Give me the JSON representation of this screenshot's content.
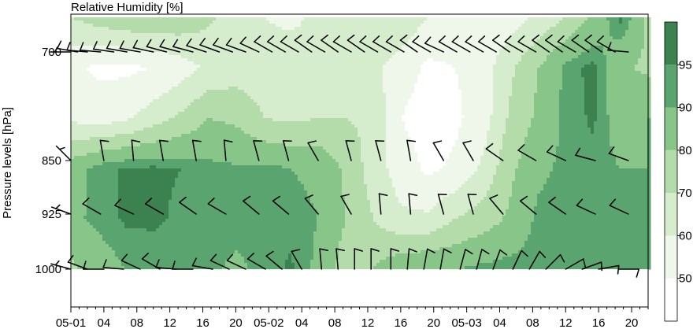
{
  "chart_data": {
    "type": "heatmap",
    "title": "Relative Humidity [%]",
    "ylabel": "Pressure levels [hPa]",
    "xlabel": "",
    "x_tick_labels": [
      "05-01",
      "04",
      "08",
      "12",
      "16",
      "20",
      "05-02",
      "04",
      "08",
      "12",
      "16",
      "20",
      "05-03",
      "04",
      "08",
      "12",
      "16",
      "20"
    ],
    "y_levels": [
      700,
      850,
      925,
      1000
    ],
    "y_tick_labels": [
      "700",
      "850",
      "925",
      "1000"
    ],
    "colorbar": {
      "tick_labels": [
        "50",
        "60",
        "70",
        "80",
        "90",
        "95"
      ],
      "levels": [
        40,
        50,
        60,
        70,
        80,
        90,
        95,
        100
      ],
      "colors": [
        "#ffffff",
        "#eef7ea",
        "#d5eccd",
        "#b3dcaa",
        "#88c588",
        "#5aa56f",
        "#3c8250"
      ]
    },
    "rh_grid": [
      [
        70,
        75,
        78,
        80,
        78,
        72,
        65,
        60,
        58,
        62,
        68,
        70,
        68,
        60,
        55,
        52,
        55,
        62,
        70,
        82,
        97,
        78
      ],
      [
        52,
        48,
        48,
        50,
        55,
        62,
        65,
        65,
        65,
        62,
        60,
        62,
        55,
        48,
        50,
        55,
        68,
        80,
        92,
        97,
        82,
        78
      ],
      [
        58,
        55,
        58,
        65,
        72,
        80,
        78,
        70,
        68,
        70,
        70,
        68,
        50,
        45,
        48,
        55,
        72,
        82,
        92,
        96,
        85,
        90
      ],
      [
        85,
        93,
        96,
        96,
        95,
        92,
        91,
        92,
        90,
        88,
        78,
        65,
        55,
        48,
        52,
        62,
        78,
        88,
        92,
        93,
        90,
        90
      ],
      [
        88,
        92,
        96,
        96,
        94,
        94,
        93,
        95,
        93,
        90,
        80,
        70,
        62,
        62,
        70,
        75,
        82,
        92,
        93,
        95,
        90,
        92
      ],
      [
        78,
        85,
        90,
        92,
        90,
        92,
        88,
        92,
        96,
        88,
        75,
        80,
        88,
        90,
        90,
        92,
        93,
        93,
        90,
        90,
        92,
        92
      ]
    ],
    "winds": {
      "x_positions": [
        0,
        2,
        5,
        9,
        13,
        17,
        21,
        25,
        29,
        33,
        37,
        41,
        45,
        49,
        53,
        57,
        61,
        65,
        69,
        73,
        77,
        81,
        85,
        89,
        93,
        97,
        101,
        105,
        109,
        113,
        117,
        121,
        125,
        129,
        133,
        137,
        141,
        145,
        149,
        153,
        157,
        161,
        165,
        169,
        170
      ],
      "levels": [
        {
          "level": 700,
          "barbs": [
            [
              0,
              270,
              5
            ],
            [
              2,
              280,
              10
            ],
            [
              5,
              275,
              10
            ],
            [
              9,
              275,
              10
            ],
            [
              13,
              278,
              10
            ],
            [
              17,
              280,
              10
            ],
            [
              21,
              280,
              10
            ],
            [
              25,
              282,
              10
            ],
            [
              29,
              285,
              10
            ],
            [
              33,
              285,
              10
            ],
            [
              37,
              285,
              10
            ],
            [
              41,
              288,
              10
            ],
            [
              45,
              290,
              10
            ],
            [
              49,
              290,
              10
            ],
            [
              53,
              290,
              10
            ],
            [
              57,
              295,
              10
            ],
            [
              61,
              300,
              10
            ],
            [
              65,
              300,
              10
            ],
            [
              69,
              300,
              10
            ],
            [
              73,
              305,
              10
            ],
            [
              77,
              300,
              10
            ],
            [
              81,
              305,
              10
            ],
            [
              85,
              300,
              10
            ],
            [
              89,
              305,
              10
            ],
            [
              93,
              300,
              10
            ],
            [
              97,
              300,
              10
            ],
            [
              101,
              300,
              10
            ],
            [
              105,
              305,
              10
            ],
            [
              109,
              300,
              10
            ],
            [
              113,
              295,
              10
            ],
            [
              117,
              300,
              10
            ],
            [
              121,
              300,
              10
            ],
            [
              125,
              300,
              10
            ],
            [
              129,
              300,
              10
            ],
            [
              133,
              305,
              10
            ],
            [
              137,
              300,
              10
            ],
            [
              141,
              300,
              10
            ],
            [
              145,
              305,
              10
            ],
            [
              149,
              305,
              10
            ],
            [
              153,
              300,
              10
            ],
            [
              157,
              305,
              10
            ],
            [
              161,
              305,
              10
            ],
            [
              165,
              300,
              10
            ],
            [
              169,
              275,
              10
            ]
          ]
        },
        {
          "level": 850,
          "barbs": [
            [
              0,
              315,
              5
            ],
            [
              10,
              350,
              10
            ],
            [
              19,
              355,
              10
            ],
            [
              28,
              350,
              10
            ],
            [
              38,
              350,
              10
            ],
            [
              47,
              355,
              10
            ],
            [
              57,
              345,
              10
            ],
            [
              66,
              345,
              10
            ],
            [
              75,
              330,
              10
            ],
            [
              85,
              345,
              10
            ],
            [
              94,
              345,
              10
            ],
            [
              103,
              350,
              10
            ],
            [
              113,
              330,
              10
            ],
            [
              122,
              330,
              10
            ],
            [
              131,
              305,
              10
            ],
            [
              141,
              300,
              10
            ],
            [
              150,
              295,
              10
            ],
            [
              159,
              285,
              10
            ],
            [
              169,
              290,
              10
            ]
          ]
        },
        {
          "level": 925,
          "barbs": [
            [
              0,
              290,
              5
            ],
            [
              9,
              300,
              10
            ],
            [
              19,
              295,
              10
            ],
            [
              28,
              300,
              10
            ],
            [
              38,
              305,
              10
            ],
            [
              47,
              300,
              10
            ],
            [
              57,
              310,
              10
            ],
            [
              66,
              310,
              10
            ],
            [
              75,
              320,
              10
            ],
            [
              85,
              330,
              10
            ],
            [
              94,
              355,
              10
            ],
            [
              103,
              355,
              10
            ],
            [
              113,
              345,
              10
            ],
            [
              122,
              345,
              10
            ],
            [
              131,
              320,
              10
            ],
            [
              141,
              310,
              10
            ],
            [
              150,
              305,
              10
            ],
            [
              159,
              295,
              10
            ],
            [
              169,
              295,
              10
            ]
          ]
        },
        {
          "level": 1000,
          "barbs": [
            [
              0,
              285,
              5
            ],
            [
              5,
              290,
              10
            ],
            [
              10,
              270,
              10
            ],
            [
              16,
              275,
              10
            ],
            [
              21,
              295,
              10
            ],
            [
              27,
              300,
              10
            ],
            [
              32,
              275,
              10
            ],
            [
              37,
              270,
              10
            ],
            [
              43,
              280,
              10
            ],
            [
              48,
              295,
              10
            ],
            [
              53,
              295,
              10
            ],
            [
              59,
              300,
              10
            ],
            [
              64,
              310,
              10
            ],
            [
              70,
              330,
              10
            ],
            [
              76,
              355,
              10
            ],
            [
              81,
              355,
              10
            ],
            [
              86,
              0,
              10
            ],
            [
              91,
              0,
              10
            ],
            [
              97,
              0,
              10
            ],
            [
              102,
              5,
              10
            ],
            [
              107,
              10,
              10
            ],
            [
              112,
              10,
              10
            ],
            [
              118,
              15,
              10
            ],
            [
              123,
              15,
              10
            ],
            [
              128,
              20,
              10
            ],
            [
              134,
              25,
              10
            ],
            [
              139,
              30,
              10
            ],
            [
              144,
              45,
              10
            ],
            [
              150,
              60,
              10
            ],
            [
              155,
              70,
              10
            ],
            [
              160,
              80,
              10
            ],
            [
              166,
              90,
              10
            ]
          ]
        }
      ]
    }
  }
}
